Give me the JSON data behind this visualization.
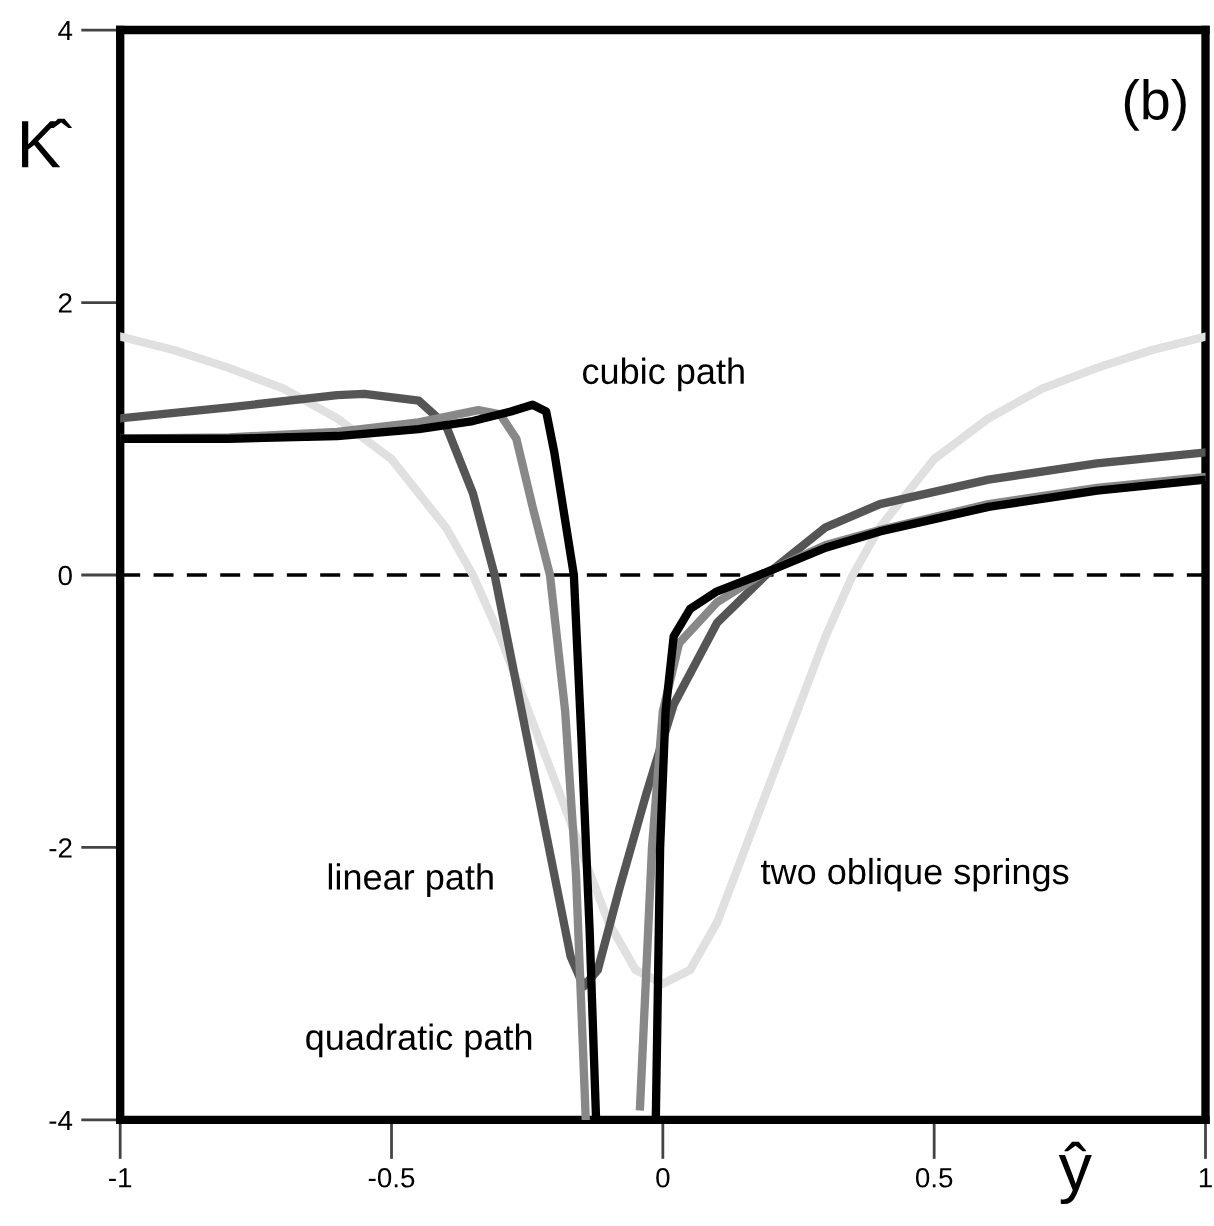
{
  "chart_data": {
    "type": "line",
    "xlabel": "ŷ",
    "ylabel": "K̂",
    "annotations": [
      "(b)"
    ],
    "xlim": [
      -1,
      1
    ],
    "ylim": [
      -4,
      4
    ],
    "xticks": [
      -1,
      -0.5,
      0,
      0.5,
      1
    ],
    "yticks": [
      -4,
      -2,
      0,
      2,
      4
    ],
    "grid": false,
    "legend": false,
    "marker": "none",
    "line_style": "solid",
    "ref_lines": [
      {
        "axis": "y",
        "value": 0,
        "color": "#000000",
        "line_style": "dashed"
      }
    ],
    "series": [
      {
        "name": "cubic path",
        "color": "#000000",
        "x": [
          -1,
          -0.8,
          -0.6,
          -0.45,
          -0.35,
          -0.28,
          -0.24,
          -0.215,
          -0.2,
          -0.18,
          -0.164,
          -0.15,
          -0.135,
          -0.123,
          -0.07,
          -0.013,
          -0.005,
          0.005,
          0.02,
          0.05,
          0.1,
          0.178,
          0.3,
          0.4,
          0.6,
          0.8,
          1
        ],
        "values": [
          1.0,
          1.0,
          1.02,
          1.07,
          1.13,
          1.2,
          1.25,
          1.2,
          0.9,
          0.4,
          0,
          -1.2,
          -2.6,
          -4,
          null,
          -4,
          -2.0,
          -1.0,
          -0.45,
          -0.25,
          -0.12,
          0,
          0.2,
          0.32,
          0.5,
          0.62,
          0.7
        ]
      },
      {
        "name": "quadratic path",
        "color": "#888888",
        "x": [
          -1,
          -0.8,
          -0.6,
          -0.45,
          -0.34,
          -0.3,
          -0.27,
          -0.24,
          -0.208,
          -0.18,
          -0.16,
          -0.142,
          -0.09,
          -0.042,
          -0.02,
          0.0,
          0.03,
          0.1,
          0.18,
          0.3,
          0.4,
          0.6,
          0.8,
          1
        ],
        "values": [
          1.0,
          1.01,
          1.05,
          1.12,
          1.21,
          1.18,
          1.0,
          0.5,
          0,
          -1.0,
          -2.2,
          -4,
          null,
          -3.9,
          -2.0,
          -1.0,
          -0.5,
          -0.2,
          0,
          0.22,
          0.33,
          0.52,
          0.64,
          0.72
        ]
      },
      {
        "name": "linear path",
        "color": "#555555",
        "x": [
          -1,
          -0.8,
          -0.6,
          -0.55,
          -0.45,
          -0.4,
          -0.35,
          -0.31,
          -0.25,
          -0.2,
          -0.17,
          -0.146,
          -0.12,
          -0.08,
          -0.03,
          0.02,
          0.1,
          0.19,
          0.3,
          0.4,
          0.6,
          0.8,
          1
        ],
        "values": [
          1.15,
          1.23,
          1.32,
          1.33,
          1.28,
          1.1,
          0.6,
          0,
          -1.2,
          -2.2,
          -2.8,
          -3.02,
          -2.9,
          -2.3,
          -1.6,
          -0.95,
          -0.35,
          0,
          0.35,
          0.52,
          0.7,
          0.82,
          0.9
        ]
      },
      {
        "name": "two oblique springs",
        "color": "#e0e0e0",
        "x": [
          -1,
          -0.9,
          -0.8,
          -0.7,
          -0.6,
          -0.5,
          -0.4,
          -0.35,
          -0.3,
          -0.2,
          -0.1,
          -0.05,
          0,
          0.05,
          0.1,
          0.2,
          0.3,
          0.35,
          0.4,
          0.5,
          0.6,
          0.7,
          0.8,
          0.9,
          1
        ],
        "values": [
          1.75,
          1.65,
          1.52,
          1.37,
          1.15,
          0.85,
          0.35,
          0.0,
          -0.45,
          -1.5,
          -2.55,
          -2.9,
          -3.0,
          -2.9,
          -2.55,
          -1.5,
          -0.45,
          0.0,
          0.35,
          0.85,
          1.15,
          1.37,
          1.52,
          1.65,
          1.75
        ]
      }
    ]
  }
}
